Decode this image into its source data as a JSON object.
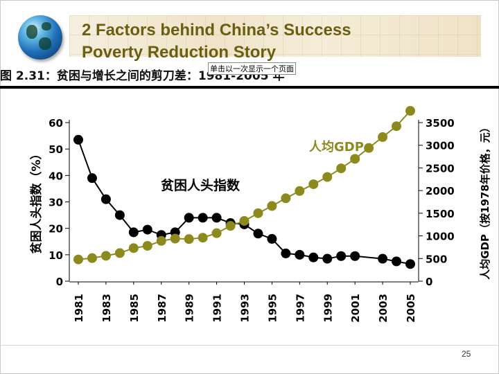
{
  "slide": {
    "title_line1": "2 Factors behind China’s Success",
    "title_line2": "Poverty Reduction Story",
    "figure_title": "图 2.31：贫困与增长之间的剪刀差：1981-2005 年",
    "tooltip": "单击以一次显示一个页面",
    "page_number": "25"
  },
  "colors": {
    "title": "#6b5e10",
    "series_poverty": "#000000",
    "series_gdp": "#8c8a1c"
  },
  "chart_data": {
    "type": "line",
    "xlabel": "",
    "ylabel_left": "贫困人头指数（%）",
    "ylabel_right": "人均GDP（按1978年价格，元）",
    "ylim_left": [
      0,
      60
    ],
    "ylim_right": [
      0,
      3500
    ],
    "left_ticks": [
      0,
      10,
      20,
      30,
      40,
      50,
      60
    ],
    "right_ticks": [
      0,
      500,
      1000,
      1500,
      2000,
      2500,
      3000,
      3500
    ],
    "x_tick_labels": [
      "1981",
      "1983",
      "1985",
      "1987",
      "1989",
      "1991",
      "1993",
      "1995",
      "1997",
      "1999",
      "2001",
      "2003",
      "2005"
    ],
    "grid": false,
    "series": [
      {
        "name": "贫困人头指数",
        "axis": "left",
        "x": [
          1981,
          1982,
          1983,
          1984,
          1985,
          1986,
          1987,
          1988,
          1989,
          1990,
          1991,
          1992,
          1993,
          1994,
          1995,
          1996,
          1997,
          1998,
          1999,
          2000,
          2001,
          2003,
          2004,
          2005
        ],
        "values": [
          53.5,
          39,
          31,
          25,
          18.5,
          19.5,
          17.5,
          18.5,
          24,
          24,
          24,
          22,
          21.5,
          18,
          16,
          10.5,
          10,
          9,
          8.5,
          9.5,
          9.5,
          8.5,
          7.5,
          6.5
        ]
      },
      {
        "name": "人均GDP",
        "axis": "right",
        "x": [
          1981,
          1982,
          1983,
          1984,
          1985,
          1986,
          1987,
          1988,
          1989,
          1990,
          1991,
          1992,
          1993,
          1994,
          1995,
          1996,
          1997,
          1998,
          1999,
          2000,
          2001,
          2002,
          2003,
          2004,
          2005
        ],
        "values": [
          480,
          510,
          560,
          620,
          730,
          780,
          890,
          940,
          930,
          960,
          1060,
          1220,
          1330,
          1500,
          1660,
          1830,
          1990,
          2140,
          2300,
          2490,
          2700,
          2940,
          3180,
          3420,
          3760
        ]
      }
    ]
  }
}
